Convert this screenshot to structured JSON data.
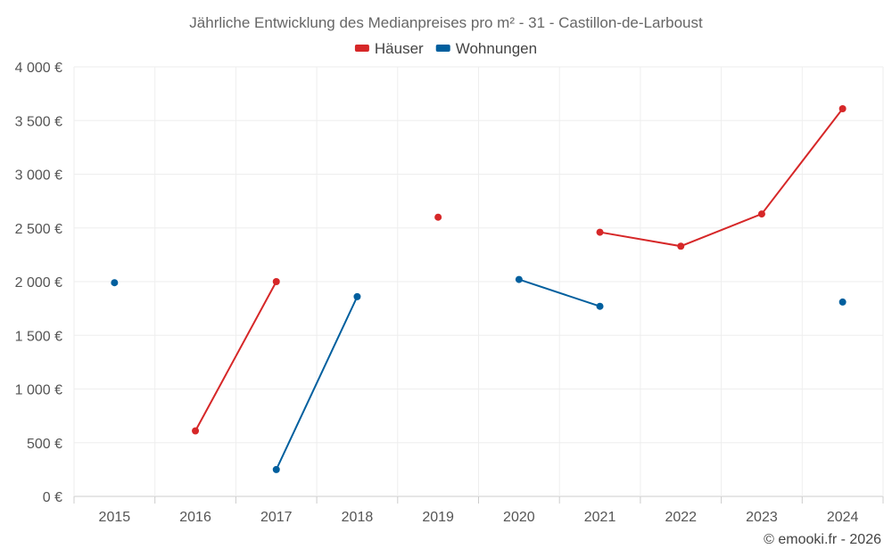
{
  "chart_data": {
    "type": "line",
    "title": "Jährliche Entwicklung des Medianpreises pro m² - 31 - Castillon-de-Larboust",
    "xlabel": "",
    "ylabel": "",
    "categories": [
      "2015",
      "2016",
      "2017",
      "2018",
      "2019",
      "2020",
      "2021",
      "2022",
      "2023",
      "2024"
    ],
    "ylim": [
      0,
      4000
    ],
    "yticks": [
      0,
      500,
      1000,
      1500,
      2000,
      2500,
      3000,
      3500,
      4000
    ],
    "ytick_labels": [
      "0 €",
      "500 €",
      "1 000 €",
      "1 500 €",
      "2 000 €",
      "2 500 €",
      "3 000 €",
      "3 500 €",
      "4 000 €"
    ],
    "grid": true,
    "legend_position": "top-center",
    "series": [
      {
        "name": "Häuser",
        "color": "#d62728",
        "values": [
          null,
          610,
          2000,
          null,
          2600,
          null,
          2460,
          2330,
          2630,
          3610
        ]
      },
      {
        "name": "Wohnungen",
        "color": "#005f9e",
        "values": [
          1990,
          null,
          250,
          1860,
          null,
          2020,
          1770,
          null,
          null,
          1810
        ]
      }
    ]
  },
  "credit": "© emooki.fr - 2026"
}
